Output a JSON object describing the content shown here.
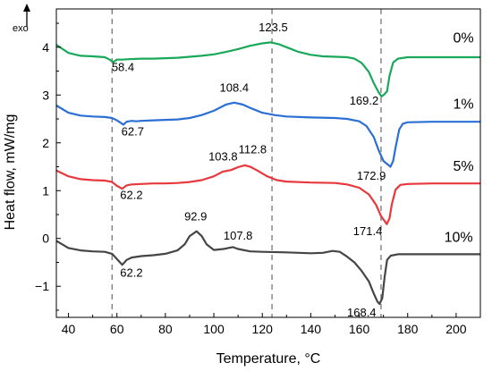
{
  "chart_data": {
    "type": "line",
    "xlabel": "Temperature, °C",
    "ylabel": "Heat flow, mW/mg",
    "exo_label": "exo",
    "xlim": [
      35,
      210
    ],
    "ylim": [
      -1.65,
      4.8
    ],
    "x_ticks": [
      40,
      60,
      80,
      100,
      120,
      140,
      160,
      180,
      200
    ],
    "y_ticks": [
      -1,
      0,
      1,
      2,
      3,
      4
    ],
    "grid": false,
    "reference_lines_x": [
      58,
      124,
      169
    ],
    "series": [
      {
        "name": "0%",
        "color": "#1aa85a",
        "points": [
          [
            35,
            4.05
          ],
          [
            40,
            3.88
          ],
          [
            45,
            3.82
          ],
          [
            50,
            3.81
          ],
          [
            55,
            3.79
          ],
          [
            57,
            3.74
          ],
          [
            58.4,
            3.69
          ],
          [
            60,
            3.74
          ],
          [
            62,
            3.74
          ],
          [
            65,
            3.75
          ],
          [
            70,
            3.76
          ],
          [
            75,
            3.76
          ],
          [
            80,
            3.77
          ],
          [
            85,
            3.78
          ],
          [
            90,
            3.8
          ],
          [
            95,
            3.82
          ],
          [
            100,
            3.85
          ],
          [
            105,
            3.9
          ],
          [
            110,
            3.96
          ],
          [
            115,
            4.03
          ],
          [
            120,
            4.08
          ],
          [
            123.5,
            4.1
          ],
          [
            127,
            4.06
          ],
          [
            130,
            4.0
          ],
          [
            135,
            3.9
          ],
          [
            140,
            3.84
          ],
          [
            145,
            3.81
          ],
          [
            150,
            3.8
          ],
          [
            155,
            3.79
          ],
          [
            158,
            3.76
          ],
          [
            161,
            3.67
          ],
          [
            164,
            3.48
          ],
          [
            166,
            3.25
          ],
          [
            168,
            3.06
          ],
          [
            169.2,
            2.97
          ],
          [
            170.5,
            3.02
          ],
          [
            171.5,
            3.08
          ],
          [
            172.5,
            3.4
          ],
          [
            174,
            3.68
          ],
          [
            176,
            3.76
          ],
          [
            180,
            3.79
          ],
          [
            190,
            3.79
          ],
          [
            200,
            3.79
          ],
          [
            210,
            3.79
          ]
        ]
      },
      {
        "name": "1%",
        "color": "#2b6fd4",
        "points": [
          [
            35,
            2.78
          ],
          [
            40,
            2.63
          ],
          [
            45,
            2.57
          ],
          [
            50,
            2.55
          ],
          [
            55,
            2.54
          ],
          [
            58,
            2.52
          ],
          [
            60,
            2.47
          ],
          [
            62.7,
            2.38
          ],
          [
            64,
            2.44
          ],
          [
            66,
            2.46
          ],
          [
            68,
            2.45
          ],
          [
            70,
            2.46
          ],
          [
            75,
            2.47
          ],
          [
            80,
            2.48
          ],
          [
            85,
            2.49
          ],
          [
            90,
            2.52
          ],
          [
            95,
            2.58
          ],
          [
            100,
            2.67
          ],
          [
            105,
            2.8
          ],
          [
            108.4,
            2.84
          ],
          [
            112,
            2.8
          ],
          [
            115,
            2.73
          ],
          [
            120,
            2.63
          ],
          [
            125,
            2.58
          ],
          [
            130,
            2.55
          ],
          [
            140,
            2.53
          ],
          [
            150,
            2.52
          ],
          [
            155,
            2.5
          ],
          [
            160,
            2.45
          ],
          [
            163,
            2.35
          ],
          [
            166,
            2.12
          ],
          [
            168,
            1.85
          ],
          [
            170,
            1.62
          ],
          [
            172.9,
            1.5
          ],
          [
            174,
            1.62
          ],
          [
            175,
            1.9
          ],
          [
            176.5,
            2.28
          ],
          [
            178,
            2.4
          ],
          [
            180,
            2.43
          ],
          [
            190,
            2.44
          ],
          [
            200,
            2.44
          ],
          [
            210,
            2.44
          ]
        ]
      },
      {
        "name": "5%",
        "color": "#e8383d",
        "points": [
          [
            35,
            1.42
          ],
          [
            40,
            1.3
          ],
          [
            45,
            1.24
          ],
          [
            50,
            1.22
          ],
          [
            55,
            1.21
          ],
          [
            58,
            1.18
          ],
          [
            60,
            1.1
          ],
          [
            62.2,
            1.04
          ],
          [
            64,
            1.11
          ],
          [
            66,
            1.13
          ],
          [
            70,
            1.14
          ],
          [
            75,
            1.15
          ],
          [
            80,
            1.15
          ],
          [
            85,
            1.16
          ],
          [
            90,
            1.18
          ],
          [
            95,
            1.22
          ],
          [
            100,
            1.3
          ],
          [
            103.8,
            1.4
          ],
          [
            107,
            1.43
          ],
          [
            110,
            1.49
          ],
          [
            112.8,
            1.53
          ],
          [
            115,
            1.5
          ],
          [
            118,
            1.42
          ],
          [
            122,
            1.3
          ],
          [
            126,
            1.22
          ],
          [
            130,
            1.19
          ],
          [
            140,
            1.17
          ],
          [
            150,
            1.16
          ],
          [
            155,
            1.13
          ],
          [
            160,
            1.06
          ],
          [
            164,
            0.92
          ],
          [
            167,
            0.7
          ],
          [
            169,
            0.47
          ],
          [
            171.4,
            0.3
          ],
          [
            172.5,
            0.42
          ],
          [
            173.5,
            0.72
          ],
          [
            175,
            1.02
          ],
          [
            177,
            1.12
          ],
          [
            180,
            1.14
          ],
          [
            190,
            1.15
          ],
          [
            200,
            1.15
          ],
          [
            210,
            1.15
          ]
        ]
      },
      {
        "name": "10%",
        "color": "#454545",
        "points": [
          [
            35,
            -0.05
          ],
          [
            40,
            -0.2
          ],
          [
            45,
            -0.25
          ],
          [
            50,
            -0.27
          ],
          [
            55,
            -0.28
          ],
          [
            58,
            -0.32
          ],
          [
            60,
            -0.43
          ],
          [
            62.2,
            -0.55
          ],
          [
            64,
            -0.45
          ],
          [
            66,
            -0.4
          ],
          [
            70,
            -0.37
          ],
          [
            75,
            -0.35
          ],
          [
            80,
            -0.32
          ],
          [
            85,
            -0.25
          ],
          [
            88,
            -0.12
          ],
          [
            90,
            0.05
          ],
          [
            92.9,
            0.15
          ],
          [
            95,
            0.05
          ],
          [
            97,
            -0.12
          ],
          [
            100,
            -0.24
          ],
          [
            104,
            -0.22
          ],
          [
            107.8,
            -0.18
          ],
          [
            110,
            -0.22
          ],
          [
            115,
            -0.27
          ],
          [
            120,
            -0.28
          ],
          [
            130,
            -0.29
          ],
          [
            140,
            -0.31
          ],
          [
            145,
            -0.3
          ],
          [
            149,
            -0.26
          ],
          [
            152,
            -0.28
          ],
          [
            155,
            -0.38
          ],
          [
            158,
            -0.5
          ],
          [
            161,
            -0.68
          ],
          [
            164,
            -0.9
          ],
          [
            166,
            -1.15
          ],
          [
            167.5,
            -1.32
          ],
          [
            168.4,
            -1.37
          ],
          [
            169.5,
            -1.25
          ],
          [
            170.5,
            -0.8
          ],
          [
            171.5,
            -0.45
          ],
          [
            173,
            -0.36
          ],
          [
            176,
            -0.33
          ],
          [
            180,
            -0.33
          ],
          [
            190,
            -0.33
          ],
          [
            200,
            -0.33
          ],
          [
            210,
            -0.33
          ]
        ]
      }
    ],
    "annotations": [
      {
        "text": "58.4",
        "x": 62.5,
        "y": 3.5
      },
      {
        "text": "123.5",
        "x": 124.5,
        "y": 4.33
      },
      {
        "text": "169.2",
        "x": 162.0,
        "y": 2.8
      },
      {
        "text": "108.4",
        "x": 108.4,
        "y": 3.07
      },
      {
        "text": "62.7",
        "x": 66.5,
        "y": 2.15
      },
      {
        "text": "172.9",
        "x": 165.0,
        "y": 1.23
      },
      {
        "text": "103.8",
        "x": 103.8,
        "y": 1.63
      },
      {
        "text": "112.8",
        "x": 116.0,
        "y": 1.78
      },
      {
        "text": "62.2",
        "x": 66.0,
        "y": 0.83
      },
      {
        "text": "171.4",
        "x": 163.5,
        "y": 0.07
      },
      {
        "text": "92.9",
        "x": 92.5,
        "y": 0.38
      },
      {
        "text": "107.8",
        "x": 110.0,
        "y": -0.02
      },
      {
        "text": "62.2",
        "x": 66.0,
        "y": -0.8
      },
      {
        "text": "168.4",
        "x": 161.0,
        "y": -1.63
      }
    ],
    "series_labels": [
      {
        "text": "0%",
        "x": 203,
        "y": 4.1
      },
      {
        "text": "1%",
        "x": 203,
        "y": 2.72
      },
      {
        "text": "5%",
        "x": 203,
        "y": 1.42
      },
      {
        "text": "10%",
        "x": 201,
        "y": -0.07
      }
    ]
  }
}
